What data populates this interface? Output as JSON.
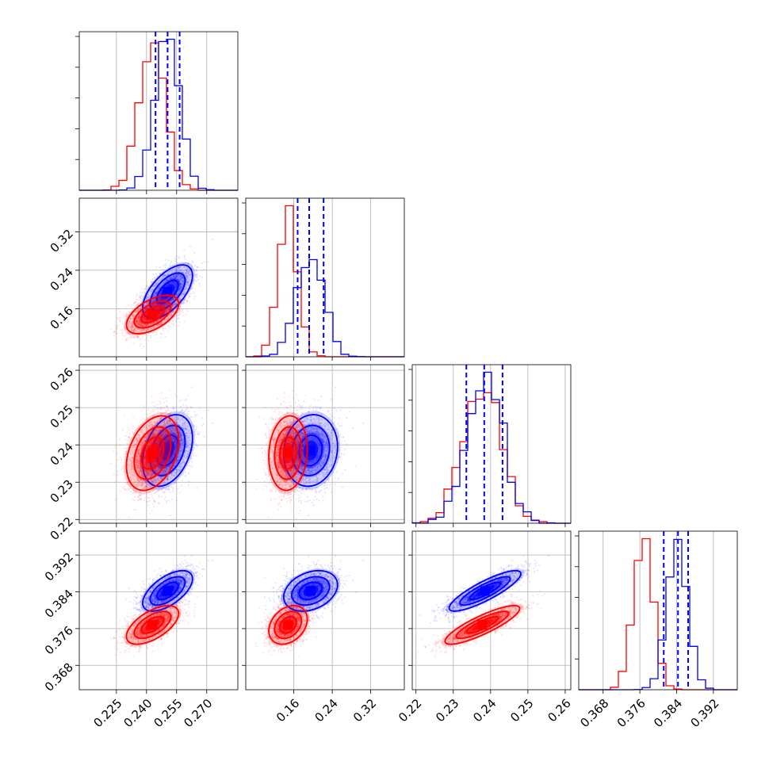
{
  "chart_data": {
    "type": "corner",
    "grid": true,
    "colors": {
      "series_a": "#0000ff",
      "series_b": "#ff0000"
    },
    "series": [
      {
        "name": "",
        "color": "#0000ff",
        "params": [
          {
            "mean": 0.2505,
            "sd": 0.0062,
            "q16": 0.2445,
            "q50": 0.2505,
            "q84": 0.2565
          },
          {
            "mean": 0.195,
            "sd": 0.028,
            "q16": 0.168,
            "q50": 0.192,
            "q84": 0.222
          },
          {
            "mean": 0.2385,
            "sd": 0.0048,
            "q16": 0.2335,
            "q50": 0.2383,
            "q84": 0.2432
          },
          {
            "mean": 0.3842,
            "sd": 0.0022,
            "q16": 0.3812,
            "q50": 0.3843,
            "q84": 0.3865
          }
        ],
        "corr": [
          [
            1,
            0.6,
            0.35,
            0.6
          ],
          [
            0.6,
            1,
            0.1,
            0.3
          ],
          [
            0.35,
            0.1,
            1,
            0.85
          ],
          [
            0.6,
            0.3,
            0.85,
            1
          ]
        ]
      },
      {
        "name": "",
        "color": "#ff0000",
        "params": [
          {
            "mean": 0.243,
            "sd": 0.0065
          },
          {
            "mean": 0.148,
            "sd": 0.02
          },
          {
            "mean": 0.2378,
            "sd": 0.005
          },
          {
            "mean": 0.3768,
            "sd": 0.0021
          }
        ],
        "corr": [
          [
            1,
            0.55,
            0.35,
            0.6
          ],
          [
            0.55,
            1,
            0.1,
            0.3
          ],
          [
            0.35,
            0.1,
            1,
            0.85
          ],
          [
            0.6,
            0.3,
            0.85,
            1
          ]
        ]
      }
    ],
    "axes": [
      {
        "range": [
          0.2065,
          0.2855
        ],
        "ticks": [
          0.225,
          0.24,
          0.255,
          0.27
        ],
        "tick_labels": [
          "0.225",
          "0.240",
          "0.255",
          "0.270"
        ]
      },
      {
        "range": [
          0.06,
          0.39
        ],
        "ticks": [
          0.16,
          0.24,
          0.32
        ],
        "tick_labels": [
          "0.16",
          "0.24",
          "0.32"
        ]
      },
      {
        "range": [
          0.219,
          0.2615
        ],
        "ticks": [
          0.22,
          0.23,
          0.24,
          0.25,
          0.26
        ],
        "tick_labels": [
          "0.22",
          "0.23",
          "0.24",
          "0.25",
          "0.26"
        ]
      },
      {
        "range": [
          0.3627,
          0.3972
        ],
        "ticks": [
          0.368,
          0.376,
          0.384,
          0.392
        ],
        "tick_labels": [
          "0.368",
          "0.376",
          "0.384",
          "0.392"
        ]
      }
    ],
    "xlabels": [
      "",
      "",
      "",
      ""
    ],
    "ylabels": [
      "",
      "",
      "",
      ""
    ]
  }
}
